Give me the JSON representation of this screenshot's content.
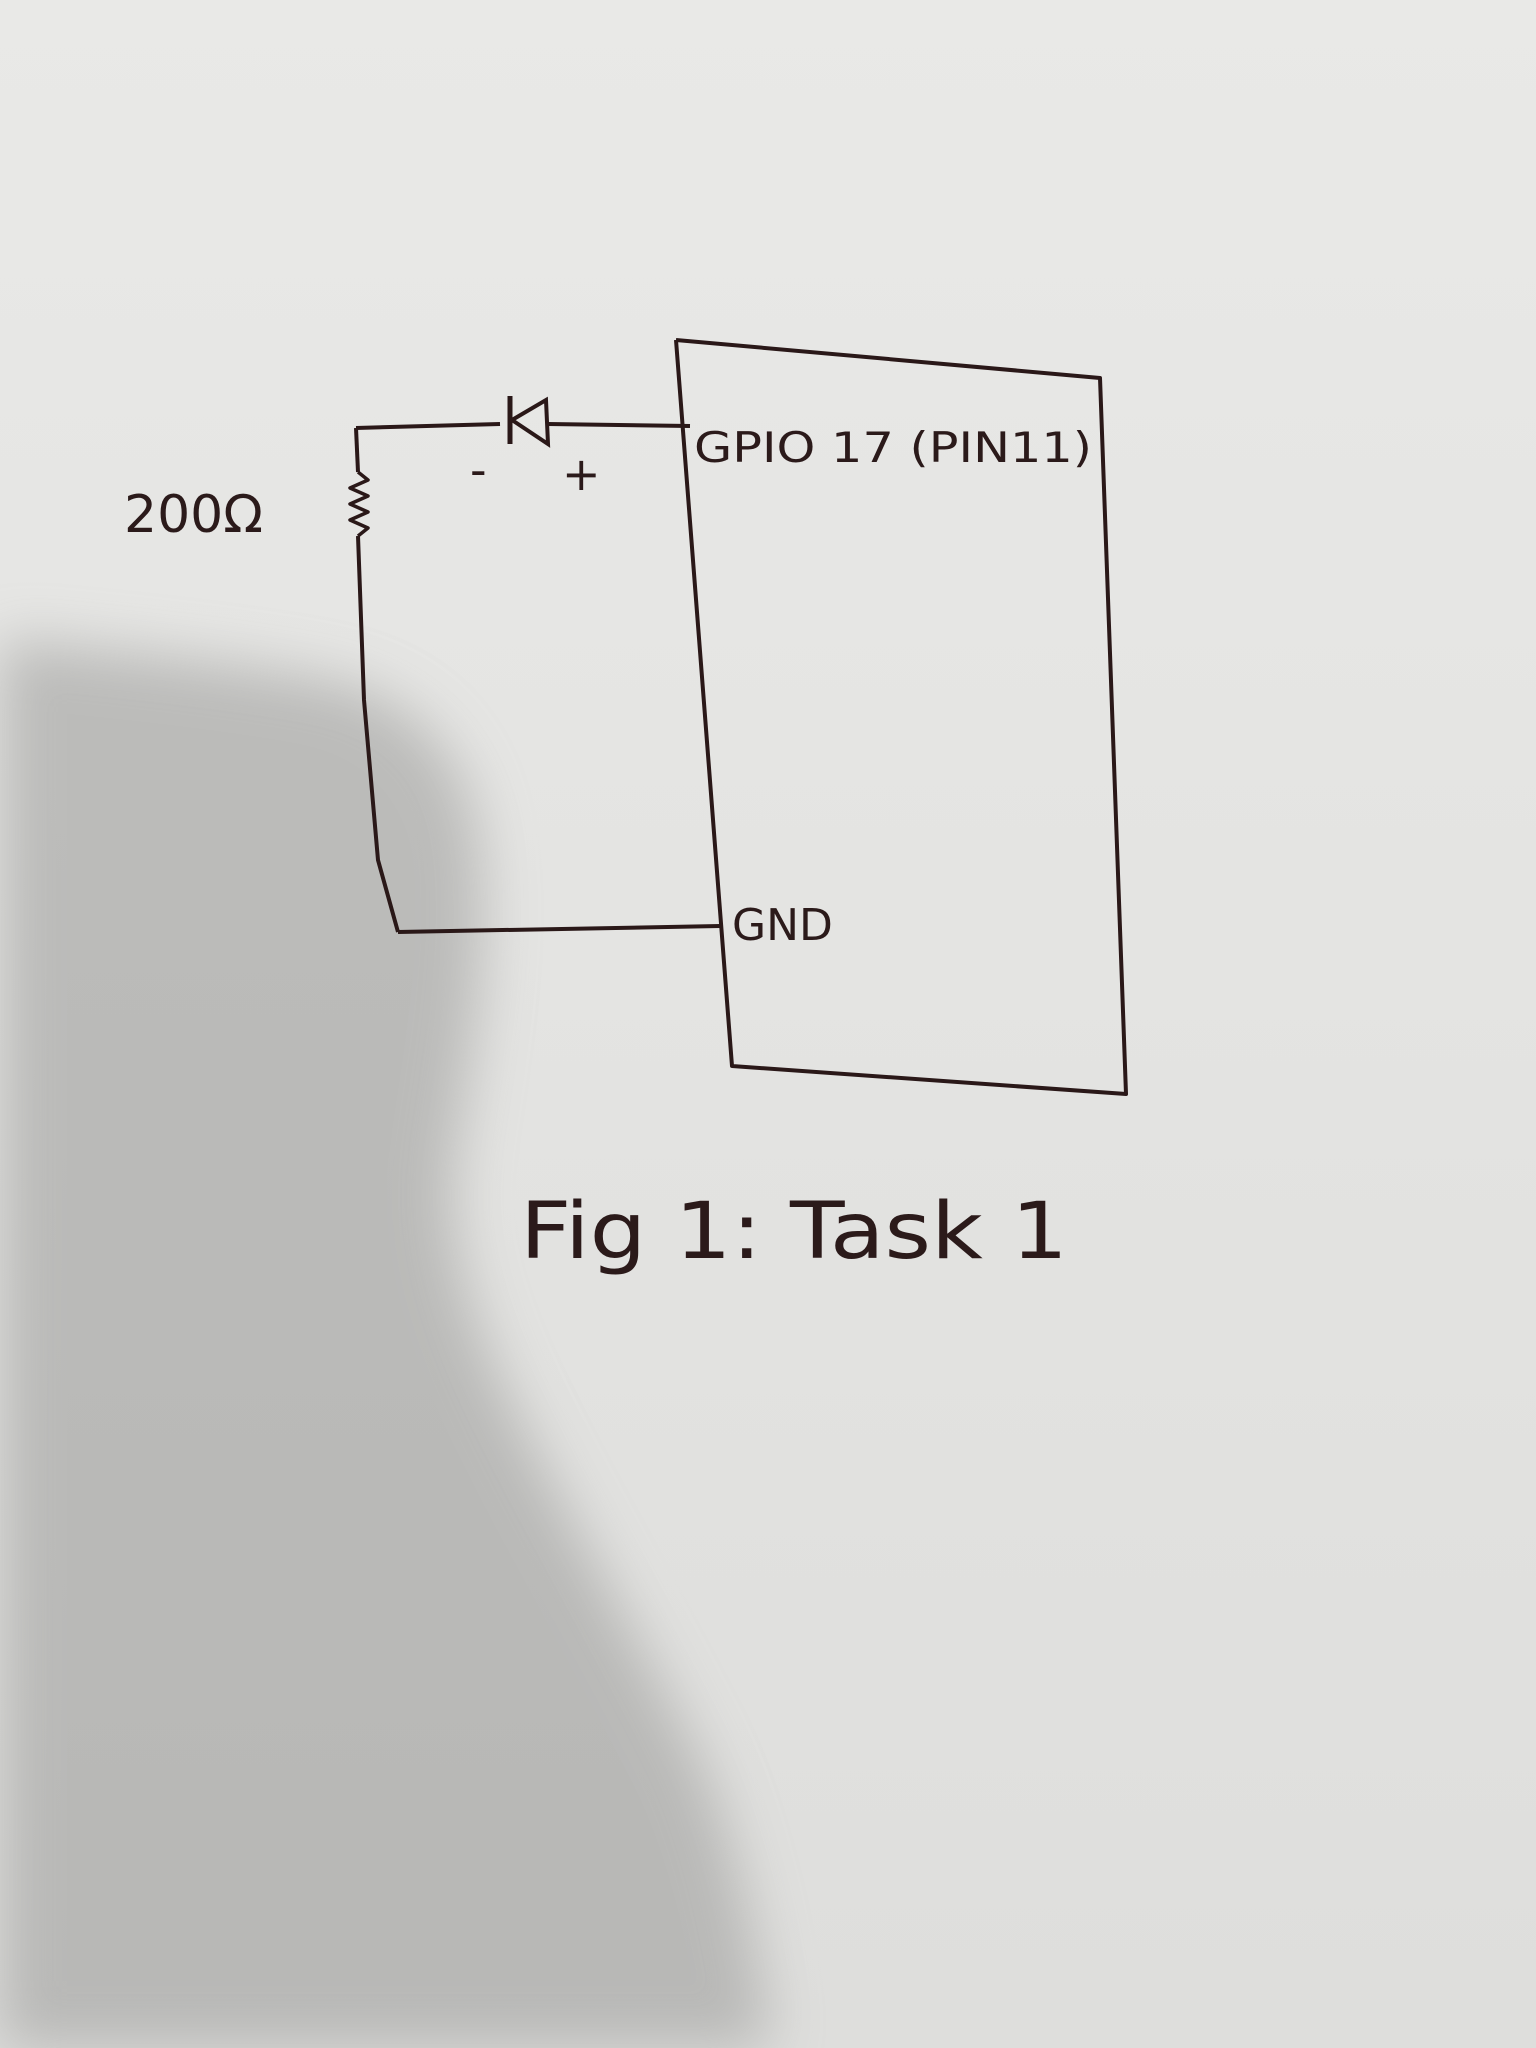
{
  "labels": {
    "resistor_value": "200Ω",
    "diode_minus": "-",
    "diode_plus": "+",
    "gpio_pin": "GPIO 17 (PIN11)",
    "ground_pin": "GND",
    "caption": "Fig 1: Task 1"
  }
}
